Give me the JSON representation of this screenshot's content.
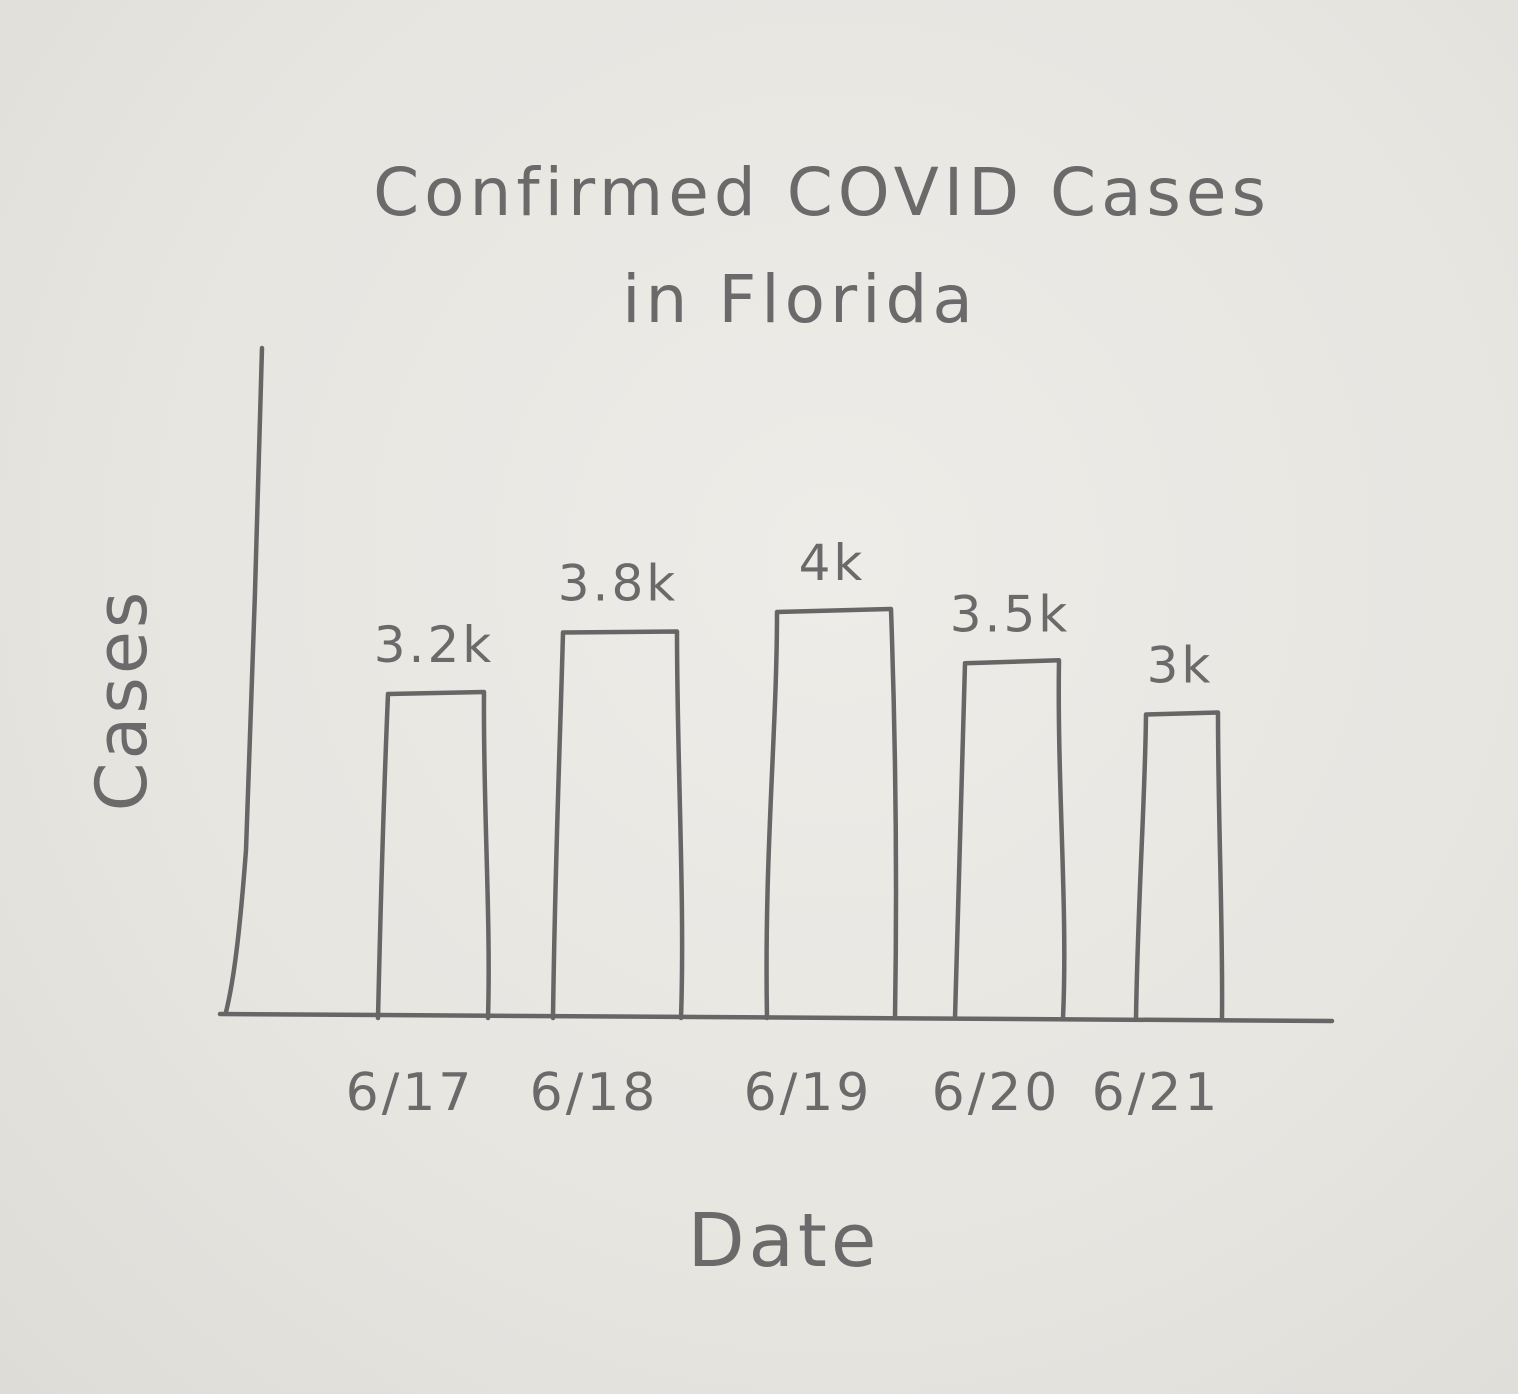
{
  "chart_data": {
    "type": "bar",
    "title": "Confirmed COVID Cases in Florida",
    "title_lines": [
      "Confirmed COVID Cases",
      "in Florida"
    ],
    "xlabel": "Date",
    "ylabel": "Cases",
    "categories": [
      "6/17",
      "6/18",
      "6/19",
      "6/20",
      "6/21"
    ],
    "values": [
      3200,
      3800,
      4000,
      3500,
      3000
    ],
    "data_labels": [
      "3.2k",
      "3.8k",
      "4k",
      "3.5k",
      "3k"
    ],
    "ylim": [
      0,
      5000
    ],
    "grid": false,
    "legend": "none",
    "style": "hand-drawn pencil sketch",
    "colors": {
      "paper": "#e9e7e2",
      "pencil": "#6a6a6a",
      "bar_fill": "none"
    }
  }
}
